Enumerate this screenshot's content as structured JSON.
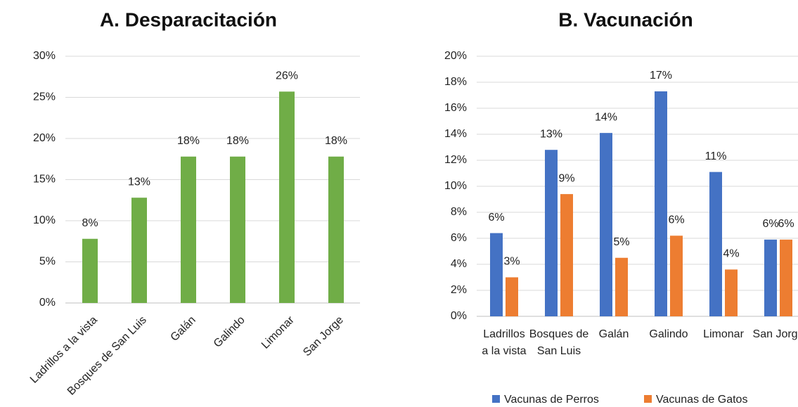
{
  "chart_data": [
    {
      "type": "bar",
      "title": "A. Desparacitación",
      "categories": [
        "Ladrillos a la vista",
        "Bosques de San Luis",
        "Galán",
        "Galindo",
        "Limonar",
        "San Jorge"
      ],
      "values": [
        7.8,
        12.8,
        17.8,
        17.8,
        25.7,
        17.8
      ],
      "value_labels": [
        "8%",
        "13%",
        "18%",
        "18%",
        "26%",
        "18%"
      ],
      "color": "#70ad47",
      "ylim": [
        0,
        30
      ],
      "yticks": [
        {
          "value": 0,
          "label": "0%"
        },
        {
          "value": 5,
          "label": "5%"
        },
        {
          "value": 10,
          "label": "10%"
        },
        {
          "value": 15,
          "label": "15%"
        },
        {
          "value": 20,
          "label": "20%"
        },
        {
          "value": 25,
          "label": "25%"
        },
        {
          "value": 30,
          "label": "30%"
        }
      ],
      "grid": true
    },
    {
      "type": "grouped_bar",
      "title": "B. Vacunación",
      "categories": [
        "Ladrillos a la vista",
        "Bosques de San Luis",
        "Galán",
        "Galindo",
        "Limonar",
        "San Jorge"
      ],
      "series": [
        {
          "name": "Vacunas de Perros",
          "color": "#4472c4",
          "values": [
            6.4,
            12.8,
            14.1,
            17.3,
            11.1,
            5.9
          ],
          "value_labels": [
            "6%",
            "13%",
            "14%",
            "17%",
            "11%",
            "6%"
          ]
        },
        {
          "name": "Vacunas de Gatos",
          "color": "#ed7d31",
          "values": [
            3.0,
            9.4,
            4.5,
            6.2,
            3.6,
            5.9
          ],
          "value_labels": [
            "3%",
            "9%",
            "5%",
            "6%",
            "4%",
            "6%"
          ]
        }
      ],
      "ylim": [
        0,
        20
      ],
      "yticks": [
        {
          "value": 0,
          "label": "0%"
        },
        {
          "value": 2,
          "label": "2%"
        },
        {
          "value": 4,
          "label": "4%"
        },
        {
          "value": 6,
          "label": "6%"
        },
        {
          "value": 8,
          "label": "8%"
        },
        {
          "value": 10,
          "label": "10%"
        },
        {
          "value": 12,
          "label": "12%"
        },
        {
          "value": 14,
          "label": "14%"
        },
        {
          "value": 16,
          "label": "16%"
        },
        {
          "value": 18,
          "label": "18%"
        },
        {
          "value": 20,
          "label": "20%"
        }
      ],
      "grid": true,
      "legend": "bottom"
    }
  ]
}
